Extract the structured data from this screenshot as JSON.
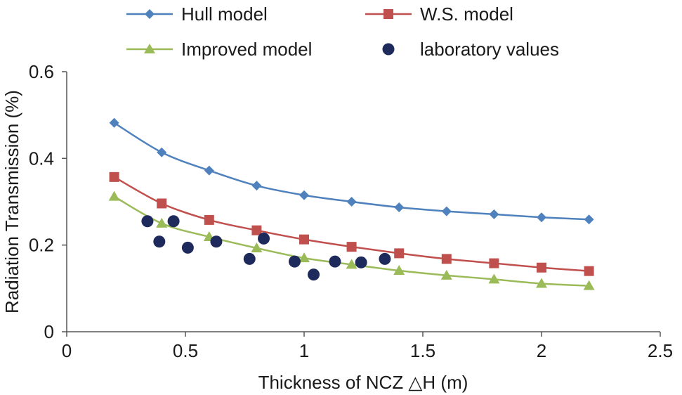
{
  "chart_data": {
    "type": "line",
    "xlabel": "Thickness of NCZ △H (m)",
    "ylabel": "Radiation Transmission (%)",
    "xlim": [
      0,
      2.5
    ],
    "ylim": [
      0,
      0.6
    ],
    "x_ticks": [
      "0",
      "0.5",
      "1",
      "1.5",
      "2",
      "2.5"
    ],
    "y_ticks": [
      "0",
      "0.2",
      "0.4",
      "0.6"
    ],
    "grid": false,
    "legend_position": "top",
    "series": [
      {
        "name": "Hull model",
        "style": "line-marker",
        "marker": "diamond",
        "color": "#4F81BD",
        "line_color": "#4F81BD",
        "x": [
          0.2,
          0.4,
          0.6,
          0.8,
          1.0,
          1.2,
          1.4,
          1.6,
          1.8,
          2.0,
          2.2
        ],
        "y": [
          0.482,
          0.414,
          0.372,
          0.337,
          0.315,
          0.3,
          0.287,
          0.278,
          0.271,
          0.264,
          0.259
        ]
      },
      {
        "name": "W.S. model",
        "style": "line-marker",
        "marker": "square",
        "color": "#C0504D",
        "line_color": "#C0504D",
        "x": [
          0.2,
          0.4,
          0.6,
          0.8,
          1.0,
          1.2,
          1.4,
          1.6,
          1.8,
          2.0,
          2.2
        ],
        "y": [
          0.357,
          0.296,
          0.258,
          0.234,
          0.213,
          0.196,
          0.181,
          0.168,
          0.158,
          0.148,
          0.14
        ]
      },
      {
        "name": "Improved model",
        "style": "line-marker",
        "marker": "triangle",
        "color": "#9BBB59",
        "line_color": "#9BBB59",
        "x": [
          0.2,
          0.4,
          0.6,
          0.8,
          1.0,
          1.2,
          1.4,
          1.6,
          1.8,
          2.0,
          2.2
        ],
        "y": [
          0.312,
          0.25,
          0.219,
          0.193,
          0.17,
          0.155,
          0.141,
          0.13,
          0.121,
          0.111,
          0.106
        ]
      },
      {
        "name": "laboratory values",
        "style": "scatter",
        "marker": "circle",
        "color": "#1F2A5C",
        "x": [
          0.34,
          0.39,
          0.45,
          0.51,
          0.63,
          0.77,
          0.83,
          0.96,
          1.04,
          1.13,
          1.24,
          1.34
        ],
        "y": [
          0.255,
          0.208,
          0.255,
          0.194,
          0.208,
          0.168,
          0.215,
          0.162,
          0.132,
          0.162,
          0.16,
          0.168
        ]
      }
    ]
  }
}
